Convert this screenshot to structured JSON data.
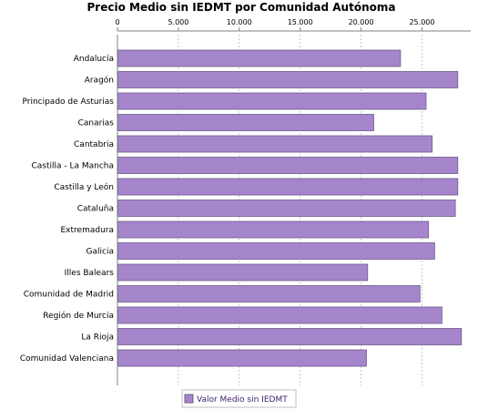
{
  "chart_data": {
    "type": "bar",
    "orientation": "horizontal",
    "title": "Precio Medio sin IEDMT por Comunidad Autónoma",
    "categories": [
      "Andalucía",
      "Aragón",
      "Principado de Asturias",
      "Canarias",
      "Cantabria",
      "Castilla - La Mancha",
      "Castilla y León",
      "Cataluña",
      "Extremadura",
      "Galicia",
      "Illes Balears",
      "Comunidad de Madrid",
      "Región de Murcia",
      "La Rioja",
      "Comunidad Valenciana"
    ],
    "series": [
      {
        "name": "Valor Medio sin IEDMT",
        "color": "#a586cc",
        "values": [
          23200,
          27900,
          25300,
          21000,
          25800,
          27900,
          27900,
          27700,
          25500,
          26000,
          20500,
          24800,
          26600,
          28200,
          20400
        ]
      }
    ],
    "xaxis": {
      "ticks": [
        0,
        5000,
        10000,
        15000,
        20000,
        25000
      ],
      "tick_labels": [
        "0",
        "5.000",
        "10.000",
        "15.000",
        "20.000",
        "25.000"
      ],
      "range": [
        0,
        29000
      ],
      "position": "top"
    },
    "grid": true,
    "legend": "bottom"
  }
}
